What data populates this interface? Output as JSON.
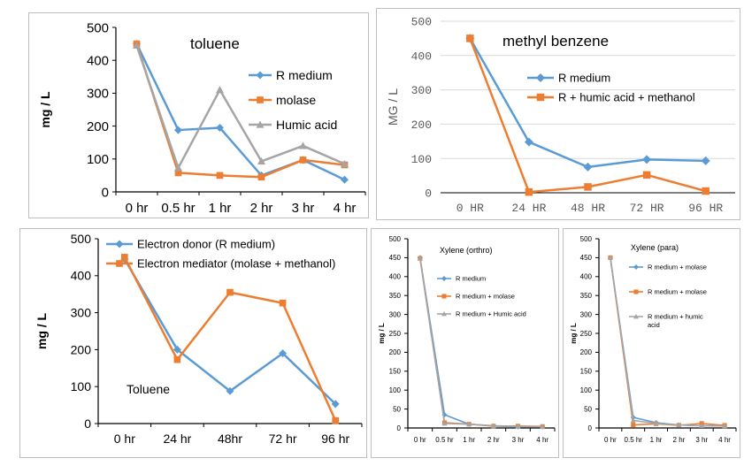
{
  "chart_data": [
    {
      "type": "line",
      "title": "toluene",
      "xlabel": "",
      "ylabel": "mg / L",
      "ylim": [
        0,
        500
      ],
      "yticks": [
        0,
        100,
        200,
        300,
        400,
        500
      ],
      "categories": [
        "0 hr",
        "0.5 hr",
        "1 hr",
        "2 hr",
        "3 hr",
        "4 hr"
      ],
      "legend_position": "right",
      "series": [
        {
          "name": "R medium",
          "color": "#5b9bd5",
          "marker": "diamond",
          "values": [
            450,
            188,
            195,
            50,
            97,
            37
          ]
        },
        {
          "name": "molase",
          "color": "#ed7d31",
          "marker": "square",
          "values": [
            450,
            58,
            50,
            45,
            97,
            82
          ]
        },
        {
          "name": "Humic acid",
          "color": "#a5a5a5",
          "marker": "triangle",
          "values": [
            445,
            73,
            310,
            93,
            140,
            85
          ]
        }
      ]
    },
    {
      "type": "line",
      "title": "methyl benzene",
      "xlabel": "",
      "ylabel": "MG / L",
      "ylim": [
        0,
        500
      ],
      "yticks": [
        0,
        100,
        200,
        300,
        400,
        500
      ],
      "categories": [
        "0 HR",
        "24 HR",
        "48 HR",
        "72 HR",
        "96 HR"
      ],
      "legend_position": "right",
      "series": [
        {
          "name": "R medium",
          "color": "#5b9bd5",
          "marker": "diamond",
          "values": [
            450,
            148,
            75,
            97,
            93
          ]
        },
        {
          "name": "R + humic acid + methanol",
          "color": "#ed7d31",
          "marker": "square",
          "values": [
            450,
            2,
            17,
            52,
            5
          ]
        }
      ]
    },
    {
      "type": "line",
      "title": "Toluene",
      "xlabel": "",
      "ylabel": "mg / L",
      "ylim": [
        0,
        500
      ],
      "yticks": [
        0,
        100,
        200,
        300,
        400,
        500
      ],
      "categories": [
        "0 hr",
        "24 hr",
        "48hr",
        "72 hr",
        "96 hr"
      ],
      "legend_position": "top-left",
      "series": [
        {
          "name": "Electron donor (R medium)",
          "color": "#5b9bd5",
          "marker": "diamond",
          "values": [
            445,
            200,
            88,
            190,
            53
          ]
        },
        {
          "name": "Electron mediator (molase + methanol)",
          "color": "#ed7d31",
          "marker": "square",
          "values": [
            450,
            173,
            355,
            326,
            8
          ]
        }
      ]
    },
    {
      "type": "line",
      "title": "Xylene (orthro)",
      "xlabel": "",
      "ylabel": "mg / L",
      "ylim": [
        0,
        500
      ],
      "yticks": [
        0,
        50,
        100,
        150,
        200,
        250,
        300,
        350,
        400,
        450,
        500
      ],
      "categories": [
        "0 hr",
        "0.5 hr",
        "1 hr",
        "2 hr",
        "3 hr",
        "4 hr"
      ],
      "legend_position": "right",
      "series": [
        {
          "name": "R medium",
          "color": "#5b9bd5",
          "marker": "diamond",
          "values": [
            450,
            35,
            10,
            5,
            3,
            3
          ]
        },
        {
          "name": "R medium + molase",
          "color": "#ed7d31",
          "marker": "square",
          "values": [
            448,
            14,
            10,
            5,
            5,
            4
          ]
        },
        {
          "name": "R medium + Humic acid",
          "color": "#a5a5a5",
          "marker": "triangle",
          "values": [
            448,
            12,
            10,
            6,
            4,
            3
          ]
        }
      ]
    },
    {
      "type": "line",
      "title": "Xylene (para)",
      "xlabel": "",
      "ylabel": "mg / L",
      "ylim": [
        0,
        500
      ],
      "yticks": [
        0,
        50,
        100,
        150,
        200,
        250,
        300,
        350,
        400,
        450,
        500
      ],
      "categories": [
        "0 hr",
        "0.5 hr",
        "1 hr",
        "2 hr",
        "3 hr",
        "4 hr"
      ],
      "legend_position": "right",
      "series": [
        {
          "name": "R medium + molase",
          "color": "#5b9bd5",
          "marker": "diamond",
          "values": [
            450,
            28,
            14,
            8,
            6,
            6
          ]
        },
        {
          "name": "R medium + molase",
          "color": "#ed7d31",
          "marker": "square",
          "values": [
            450,
            8,
            11,
            7,
            12,
            7
          ]
        },
        {
          "name": "R medium + humic acid",
          "color": "#a5a5a5",
          "marker": "triangle",
          "values": [
            450,
            20,
            12,
            8,
            6,
            5
          ]
        }
      ]
    }
  ]
}
